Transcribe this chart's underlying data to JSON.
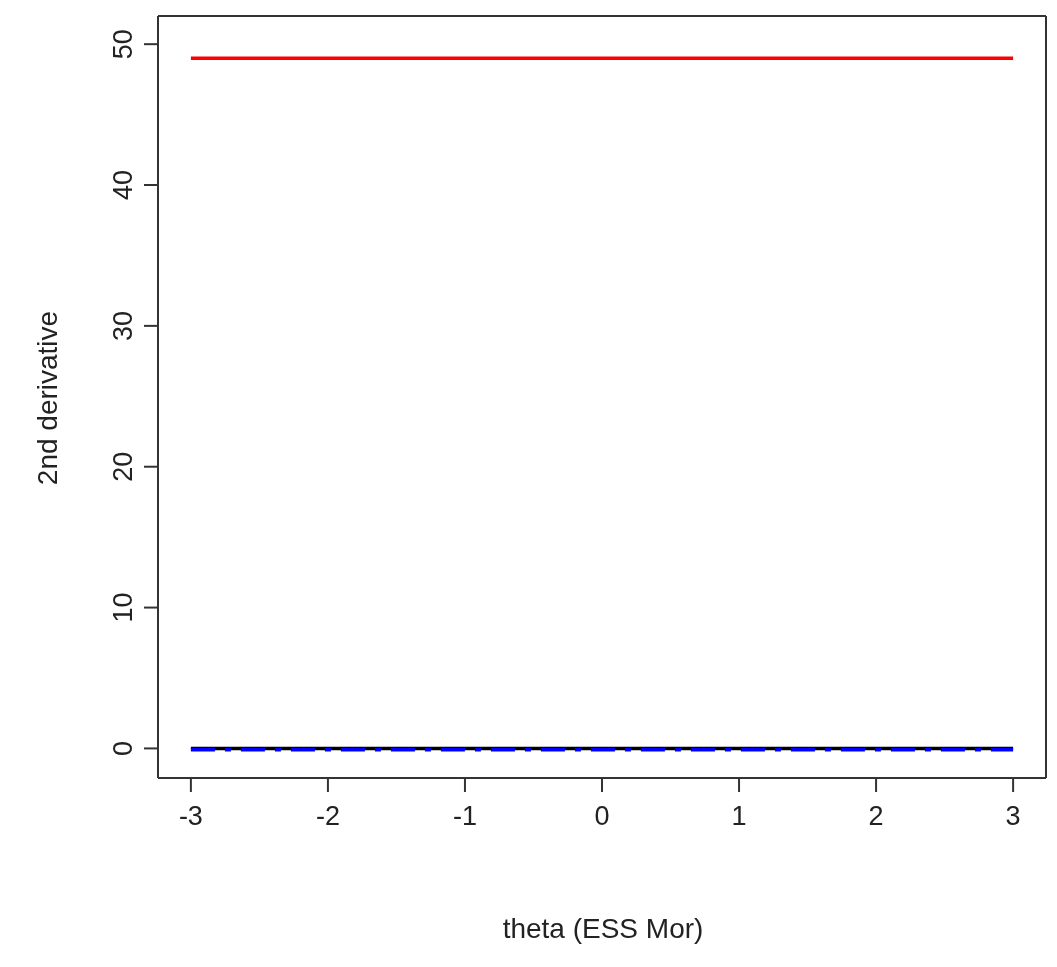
{
  "chart_data": {
    "type": "line",
    "xlabel": "theta (ESS Mor)",
    "ylabel": "2nd derivative",
    "xlim": [
      -3.24,
      3.24
    ],
    "ylim": [
      -2.1,
      52
    ],
    "xticks": [
      -3,
      -2,
      -1,
      0,
      1,
      2,
      3
    ],
    "yticks": [
      0,
      10,
      20,
      30,
      40,
      50
    ],
    "marker": "none",
    "x": [
      -3,
      3
    ],
    "series": [
      {
        "color": "#ff0000",
        "values": [
          49,
          49
        ],
        "line_style": "solid"
      },
      {
        "color": "#000000",
        "values": [
          0,
          0
        ],
        "line_style": "solid"
      },
      {
        "color": "#0000ff",
        "values": [
          -0.1,
          -0.1
        ],
        "line_style": "dashed"
      }
    ]
  }
}
